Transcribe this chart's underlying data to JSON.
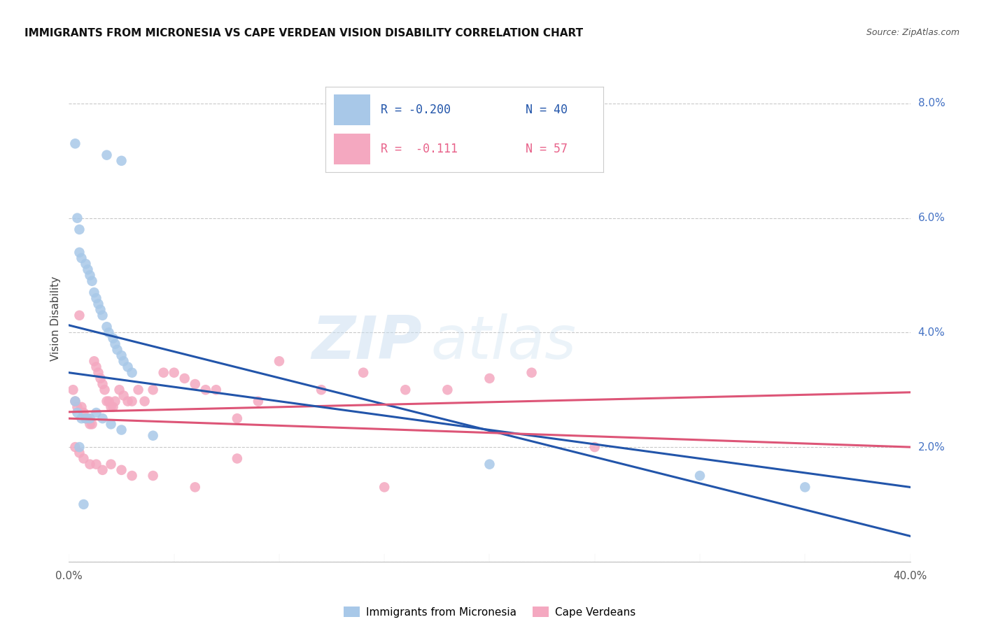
{
  "title": "IMMIGRANTS FROM MICRONESIA VS CAPE VERDEAN VISION DISABILITY CORRELATION CHART",
  "source": "Source: ZipAtlas.com",
  "ylabel": "Vision Disability",
  "xlim": [
    0.0,
    0.4
  ],
  "ylim": [
    0.0,
    0.085
  ],
  "blue_color": "#a8c8e8",
  "pink_color": "#f4a8c0",
  "blue_line_color": "#2255aa",
  "pink_line_color": "#dd5577",
  "legend_label_blue": "Immigrants from Micronesia",
  "legend_label_pink": "Cape Verdeans",
  "background": "#ffffff",
  "grid_color": "#bbbbbb",
  "micronesia_x": [
    0.003,
    0.018,
    0.025,
    0.004,
    0.005,
    0.005,
    0.006,
    0.008,
    0.009,
    0.01,
    0.011,
    0.012,
    0.013,
    0.014,
    0.015,
    0.016,
    0.018,
    0.019,
    0.021,
    0.022,
    0.023,
    0.025,
    0.026,
    0.028,
    0.03,
    0.003,
    0.004,
    0.006,
    0.008,
    0.01,
    0.013,
    0.016,
    0.02,
    0.025,
    0.04,
    0.2,
    0.3,
    0.35,
    0.005,
    0.007
  ],
  "micronesia_y": [
    0.073,
    0.071,
    0.07,
    0.06,
    0.058,
    0.054,
    0.053,
    0.052,
    0.051,
    0.05,
    0.049,
    0.047,
    0.046,
    0.045,
    0.044,
    0.043,
    0.041,
    0.04,
    0.039,
    0.038,
    0.037,
    0.036,
    0.035,
    0.034,
    0.033,
    0.028,
    0.026,
    0.025,
    0.025,
    0.025,
    0.026,
    0.025,
    0.024,
    0.023,
    0.022,
    0.017,
    0.015,
    0.013,
    0.02,
    0.01
  ],
  "cape_verdean_x": [
    0.002,
    0.003,
    0.004,
    0.005,
    0.006,
    0.007,
    0.008,
    0.009,
    0.01,
    0.011,
    0.012,
    0.013,
    0.014,
    0.015,
    0.016,
    0.017,
    0.018,
    0.019,
    0.02,
    0.021,
    0.022,
    0.024,
    0.026,
    0.028,
    0.03,
    0.033,
    0.036,
    0.04,
    0.045,
    0.05,
    0.055,
    0.06,
    0.065,
    0.07,
    0.08,
    0.09,
    0.1,
    0.12,
    0.14,
    0.16,
    0.18,
    0.2,
    0.22,
    0.003,
    0.005,
    0.007,
    0.01,
    0.013,
    0.016,
    0.02,
    0.025,
    0.03,
    0.04,
    0.06,
    0.08,
    0.15,
    0.25
  ],
  "cape_verdean_y": [
    0.03,
    0.028,
    0.027,
    0.043,
    0.027,
    0.026,
    0.025,
    0.025,
    0.024,
    0.024,
    0.035,
    0.034,
    0.033,
    0.032,
    0.031,
    0.03,
    0.028,
    0.028,
    0.027,
    0.027,
    0.028,
    0.03,
    0.029,
    0.028,
    0.028,
    0.03,
    0.028,
    0.03,
    0.033,
    0.033,
    0.032,
    0.031,
    0.03,
    0.03,
    0.025,
    0.028,
    0.035,
    0.03,
    0.033,
    0.03,
    0.03,
    0.032,
    0.033,
    0.02,
    0.019,
    0.018,
    0.017,
    0.017,
    0.016,
    0.017,
    0.016,
    0.015,
    0.015,
    0.013,
    0.018,
    0.013,
    0.02
  ]
}
